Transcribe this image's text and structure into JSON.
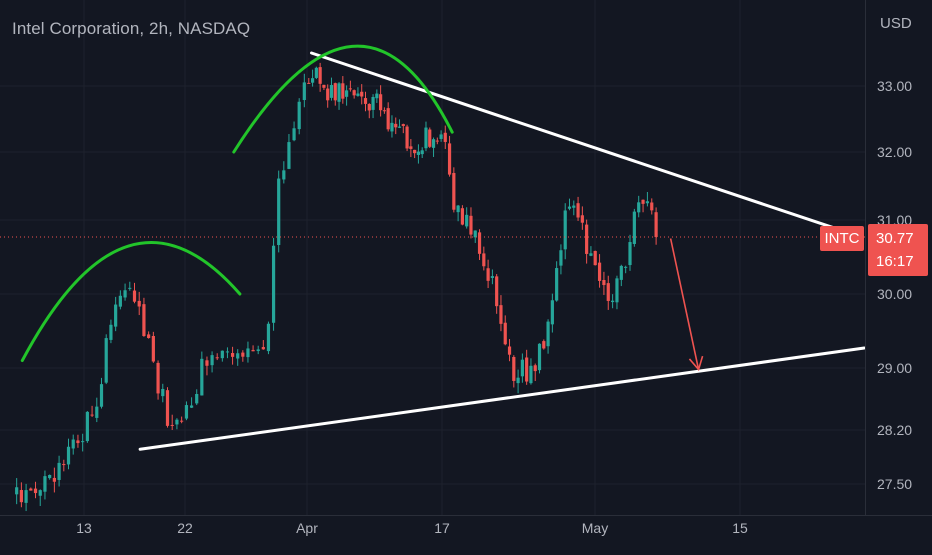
{
  "header": {
    "title": "Intel Corporation, 2h, NASDAQ",
    "currency": "USD"
  },
  "price_label": {
    "symbol": "INTC",
    "price": "30.77",
    "countdown": "16:17"
  },
  "colors": {
    "background": "#131722",
    "grid": "#1e222d",
    "up": "#26a69a",
    "down": "#ef5350",
    "axis_text": "#b2b5be",
    "trendline": "#ffffff",
    "arc": "#22c52a",
    "projection_arrow": "#ef5350",
    "last_price_line": "#ef5350"
  },
  "chart_data": {
    "type": "candlestick",
    "title": "Intel Corporation, 2h, NASDAQ",
    "xlabel": "",
    "ylabel": "USD",
    "y_ticks": [
      33.0,
      32.0,
      31.0,
      30.0,
      29.0,
      28.2,
      27.5
    ],
    "y_tick_labels": [
      "33.00",
      "32.00",
      "31.00",
      "30.00",
      "29.00",
      "28.20",
      "27.50"
    ],
    "x_tick_labels": [
      "13",
      "22",
      "Apr",
      "17",
      "May",
      "15"
    ],
    "x_tick_days": [
      13,
      22,
      32,
      47,
      62,
      76
    ],
    "xlim_days": [
      7,
      87
    ],
    "last_price": 30.77,
    "grid": true,
    "anchors": [
      {
        "day": 7.0,
        "price": 27.35
      },
      {
        "day": 9.5,
        "price": 27.5
      },
      {
        "day": 12.0,
        "price": 27.9
      },
      {
        "day": 14.0,
        "price": 28.5
      },
      {
        "day": 16.0,
        "price": 30.0
      },
      {
        "day": 17.0,
        "price": 30.05
      },
      {
        "day": 18.5,
        "price": 29.5
      },
      {
        "day": 20.5,
        "price": 28.3
      },
      {
        "day": 22.0,
        "price": 28.4
      },
      {
        "day": 24.0,
        "price": 29.2
      },
      {
        "day": 25.5,
        "price": 29.4
      },
      {
        "day": 27.0,
        "price": 29.1
      },
      {
        "day": 28.8,
        "price": 29.4
      },
      {
        "day": 29.5,
        "price": 31.5
      },
      {
        "day": 31.0,
        "price": 32.5
      },
      {
        "day": 32.5,
        "price": 33.3
      },
      {
        "day": 34.0,
        "price": 32.95
      },
      {
        "day": 36.0,
        "price": 32.9
      },
      {
        "day": 38.0,
        "price": 32.8
      },
      {
        "day": 40.0,
        "price": 32.7
      },
      {
        "day": 42.0,
        "price": 32.3
      },
      {
        "day": 44.5,
        "price": 32.1
      },
      {
        "day": 46.0,
        "price": 32.3
      },
      {
        "day": 47.5,
        "price": 32.0
      },
      {
        "day": 48.0,
        "price": 31.2
      },
      {
        "day": 50.0,
        "price": 30.9
      },
      {
        "day": 52.0,
        "price": 30.1
      },
      {
        "day": 54.0,
        "price": 29.0
      },
      {
        "day": 56.0,
        "price": 28.9
      },
      {
        "day": 57.5,
        "price": 29.6
      },
      {
        "day": 59.0,
        "price": 31.1
      },
      {
        "day": 60.0,
        "price": 31.2
      },
      {
        "day": 62.0,
        "price": 30.3
      },
      {
        "day": 63.5,
        "price": 29.9
      },
      {
        "day": 65.0,
        "price": 30.5
      },
      {
        "day": 66.5,
        "price": 31.4
      },
      {
        "day": 67.7,
        "price": 31.1
      },
      {
        "day": 68.3,
        "price": 30.77
      }
    ],
    "drawings": {
      "resistance_line": [
        {
          "day": 32.5,
          "price": 33.5
        },
        {
          "day": 86.0,
          "price": 30.85
        }
      ],
      "support_line": [
        {
          "day": 18.0,
          "price": 27.95
        },
        {
          "day": 88.0,
          "price": 29.27
        }
      ],
      "projection_arrow": [
        {
          "day": 69.3,
          "price": 30.75
        },
        {
          "day": 72.0,
          "price": 28.98
        }
      ],
      "arcs": [
        {
          "from": {
            "day": 7.5,
            "price": 29.1
          },
          "peak": {
            "day": 17.0,
            "price": 30.65
          },
          "to": {
            "day": 26.5,
            "price": 30.0
          }
        },
        {
          "from": {
            "day": 26.0,
            "price": 32.0
          },
          "peak": {
            "day": 37.0,
            "price": 33.6
          },
          "to": {
            "day": 48.0,
            "price": 32.3
          }
        }
      ]
    }
  }
}
